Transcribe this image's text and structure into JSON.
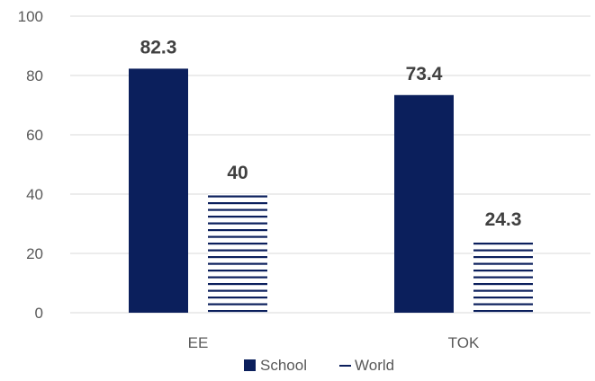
{
  "chart_data": {
    "type": "bar",
    "categories": [
      "EE",
      "TOK"
    ],
    "series": [
      {
        "name": "School",
        "values": [
          82.3,
          73.4
        ],
        "color": "#0b1f5c",
        "fill_style": "solid"
      },
      {
        "name": "World",
        "values": [
          40,
          24.3
        ],
        "color": "#0b1f5c",
        "fill_style": "horizontal-stripes"
      }
    ],
    "data_labels": [
      [
        "82.3",
        "73.4"
      ],
      [
        "40",
        "24.3"
      ]
    ],
    "yticks": [
      0,
      20,
      40,
      60,
      80,
      100
    ],
    "ylim": [
      0,
      100
    ],
    "grid": true,
    "gridline_color": "#d9d9d9",
    "legend_position": "bottom"
  }
}
